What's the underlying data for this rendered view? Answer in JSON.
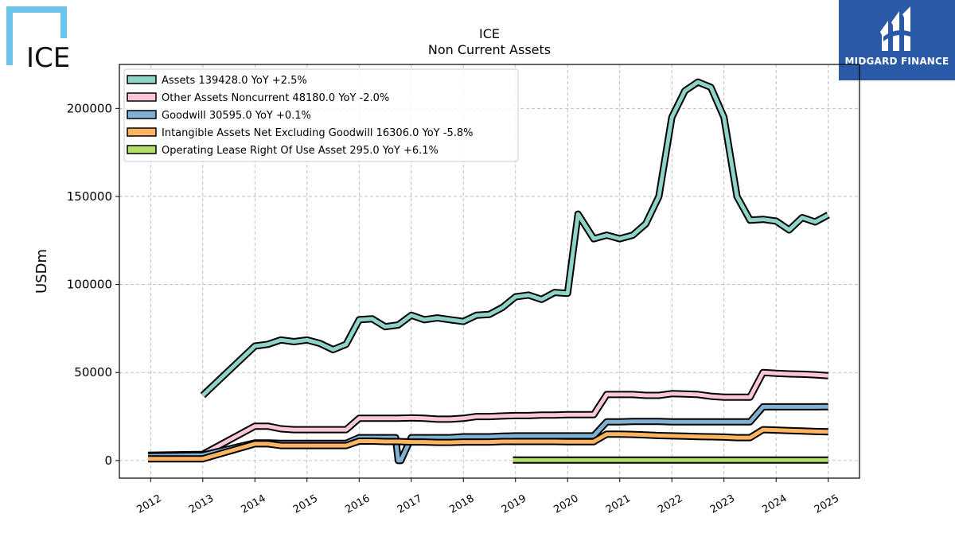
{
  "logos": {
    "left_text": "ICE",
    "right_text": "MIDGARD FINANCE",
    "left_color": "#6cc4ea",
    "right_bg": "#2a59a8"
  },
  "chart_data": {
    "type": "line",
    "title": "ICE",
    "subtitle": "Non Current  Assets",
    "xlabel": "",
    "ylabel": "USDm",
    "xlim": [
      2011.4,
      2025.6
    ],
    "ylim": [
      -10000,
      225000
    ],
    "x_ticks": [
      2012,
      2013,
      2014,
      2015,
      2016,
      2017,
      2018,
      2019,
      2020,
      2021,
      2022,
      2023,
      2024,
      2025
    ],
    "y_ticks": [
      0,
      50000,
      100000,
      150000,
      200000
    ],
    "y_tick_labels": [
      "0",
      "50000",
      "100000",
      "150000",
      "200000"
    ],
    "grid": true,
    "legend_position": "top-left",
    "series": [
      {
        "name": "Assets  139428.0 YoY +2.5%",
        "color": "#8dd3c7",
        "x": [
          2013.0,
          2014.0,
          2014.25,
          2014.5,
          2014.75,
          2015.0,
          2015.25,
          2015.5,
          2015.75,
          2016.0,
          2016.25,
          2016.5,
          2016.75,
          2017.0,
          2017.25,
          2017.5,
          2017.75,
          2018.0,
          2018.25,
          2018.5,
          2018.75,
          2019.0,
          2019.25,
          2019.5,
          2019.75,
          2020.0,
          2020.2,
          2020.5,
          2020.75,
          2021.0,
          2021.25,
          2021.5,
          2021.75,
          2022.0,
          2022.25,
          2022.5,
          2022.75,
          2023.0,
          2023.25,
          2023.5,
          2023.75,
          2024.0,
          2024.25,
          2024.5,
          2024.75,
          2025.0
        ],
        "values": [
          37000,
          65000,
          66000,
          68500,
          67500,
          68500,
          66500,
          63000,
          66000,
          80000,
          80500,
          76000,
          77000,
          82500,
          80000,
          81000,
          80000,
          79000,
          82500,
          83000,
          87000,
          93000,
          94000,
          91500,
          95500,
          95000,
          140000,
          126000,
          128000,
          126000,
          128000,
          134500,
          150000,
          195000,
          210000,
          215000,
          212000,
          195000,
          150000,
          136500,
          137000,
          136000,
          131000,
          138000,
          135500,
          139500
        ]
      },
      {
        "name": "Other Assets Noncurrent  48180.0 YoY -2.0%",
        "color": "#fbc6dc",
        "x": [
          2011.95,
          2013.0,
          2014.0,
          2014.25,
          2014.5,
          2014.75,
          2015.0,
          2015.25,
          2015.5,
          2015.75,
          2016.0,
          2016.25,
          2016.5,
          2016.75,
          2017.0,
          2017.25,
          2017.5,
          2017.75,
          2018.0,
          2018.25,
          2018.5,
          2018.75,
          2019.0,
          2019.25,
          2019.5,
          2019.75,
          2020.0,
          2020.25,
          2020.5,
          2020.75,
          2021.0,
          2021.25,
          2021.5,
          2021.75,
          2022.0,
          2022.25,
          2022.5,
          2022.75,
          2023.0,
          2023.25,
          2023.5,
          2023.75,
          2024.0,
          2024.25,
          2024.5,
          2024.75,
          2025.0
        ],
        "values": [
          3000,
          3500,
          19500,
          19500,
          18000,
          17500,
          17500,
          17500,
          17500,
          17500,
          24000,
          24000,
          24000,
          24000,
          24200,
          24000,
          23500,
          23500,
          24000,
          25000,
          25000,
          25300,
          25500,
          25500,
          25800,
          25800,
          26000,
          26000,
          26000,
          37500,
          37500,
          37500,
          37000,
          37000,
          38000,
          37800,
          37500,
          36500,
          36000,
          36000,
          36000,
          50000,
          49500,
          49200,
          49000,
          48700,
          48200
        ]
      },
      {
        "name": "Goodwill  30595.0 YoY +0.1%",
        "color": "#80b1d3",
        "x": [
          2011.95,
          2013.0,
          2014.0,
          2014.25,
          2014.5,
          2014.75,
          2015.0,
          2015.25,
          2015.5,
          2015.75,
          2016.0,
          2016.25,
          2016.5,
          2016.7,
          2016.75,
          2016.8,
          2017.0,
          2017.25,
          2017.5,
          2017.75,
          2018.0,
          2018.25,
          2018.5,
          2018.75,
          2019.0,
          2019.25,
          2019.5,
          2019.75,
          2020.0,
          2020.25,
          2020.5,
          2020.75,
          2021.0,
          2021.25,
          2021.5,
          2021.75,
          2022.0,
          2022.25,
          2022.5,
          2022.75,
          2023.0,
          2023.25,
          2023.5,
          2023.75,
          2024.0,
          2024.25,
          2024.5,
          2024.75,
          2025.0
        ],
        "values": [
          2500,
          3000,
          10000,
          10000,
          9800,
          9800,
          9800,
          9800,
          9800,
          9800,
          13000,
          13000,
          13000,
          13000,
          0,
          0,
          13000,
          13000,
          13000,
          13000,
          13500,
          13500,
          13500,
          13800,
          14000,
          14000,
          14000,
          14000,
          14000,
          14000,
          14000,
          22000,
          22000,
          22200,
          22200,
          22200,
          22000,
          22000,
          22000,
          22000,
          22000,
          22000,
          22000,
          30500,
          30500,
          30500,
          30500,
          30500,
          30600
        ]
      },
      {
        "name": "Intangible Assets Net Excluding Goodwill  16306.0 YoY -5.8%",
        "color": "#fdb462",
        "x": [
          2011.95,
          2013.0,
          2014.0,
          2014.25,
          2014.5,
          2014.75,
          2015.0,
          2015.25,
          2015.5,
          2015.75,
          2016.0,
          2016.25,
          2016.5,
          2016.75,
          2017.0,
          2017.25,
          2017.5,
          2017.75,
          2018.0,
          2018.25,
          2018.5,
          2018.75,
          2019.0,
          2019.25,
          2019.5,
          2019.75,
          2020.0,
          2020.25,
          2020.5,
          2020.75,
          2021.0,
          2021.25,
          2021.5,
          2021.75,
          2022.0,
          2022.25,
          2022.5,
          2022.75,
          2023.0,
          2023.25,
          2023.5,
          2023.75,
          2024.0,
          2024.25,
          2024.5,
          2024.75,
          2025.0
        ],
        "values": [
          1000,
          1000,
          9500,
          9500,
          8500,
          8500,
          8500,
          8500,
          8500,
          8500,
          11000,
          11000,
          10800,
          10800,
          10500,
          10500,
          10300,
          10300,
          10500,
          10500,
          10500,
          10800,
          10800,
          10800,
          10800,
          10800,
          10700,
          10700,
          10700,
          15000,
          15000,
          14800,
          14500,
          14200,
          14000,
          13800,
          13600,
          13500,
          13300,
          13000,
          13000,
          17500,
          17300,
          17000,
          16800,
          16500,
          16300
        ]
      },
      {
        "name": "Operating Lease Right Of Use Asset  295.0 YoY +6.1%",
        "color": "#b3de69",
        "x": [
          2018.95,
          2025.0
        ],
        "values": [
          280,
          295
        ]
      }
    ]
  }
}
